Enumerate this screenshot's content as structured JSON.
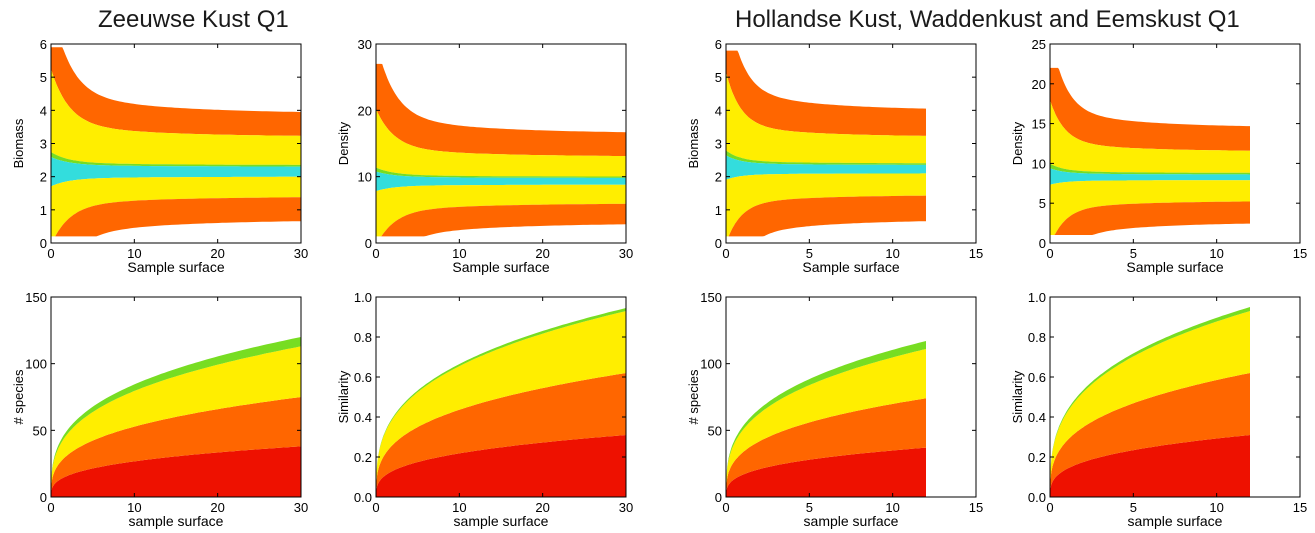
{
  "titles": {
    "left": "Zeeuwse Kust Q1",
    "right": "Hollandse Kust, Waddenkust and Eemskust  Q1"
  },
  "colors": {
    "red": "#ee1100",
    "orange": "#ff6600",
    "yellow": "#ffee00",
    "green": "#77dd22",
    "cyan": "#33dddd"
  },
  "chart_data": [
    {
      "id": "zk-biomass",
      "type": "area",
      "xlabel": "Sample surface",
      "ylabel": "Biomass",
      "xlim": [
        0,
        30
      ],
      "ylim": [
        0,
        6
      ],
      "xticks": [
        "0",
        "10",
        "20",
        "30"
      ],
      "yticks": [
        "0",
        "1",
        "2",
        "3",
        "4",
        "5",
        "6"
      ],
      "x_end": 30,
      "center": 2.15,
      "bands_at_end": [
        {
          "color": "orange",
          "low": 3.2,
          "high": 3.9
        },
        {
          "color": "yellow",
          "low": 2.35,
          "high": 3.2
        },
        {
          "color": "green",
          "low": 2.3,
          "high": 2.35
        },
        {
          "color": "cyan",
          "low": 2.0,
          "high": 2.3
        },
        {
          "color": "yellow",
          "low": 1.4,
          "high": 2.0
        },
        {
          "color": "orange",
          "low": 0.7,
          "high": 1.4
        }
      ],
      "peak": 5.9,
      "floor": 0.2
    },
    {
      "id": "zk-density",
      "type": "area",
      "xlabel": "Sample surface",
      "ylabel": "Density",
      "xlim": [
        0,
        30
      ],
      "ylim": [
        0,
        30
      ],
      "xticks": [
        "0",
        "10",
        "20",
        "30"
      ],
      "yticks": [
        "0",
        "10",
        "20",
        "30"
      ],
      "x_end": 30,
      "center": 9.3,
      "bands_at_end": [
        {
          "color": "orange",
          "low": 13,
          "high": 16.5
        },
        {
          "color": "yellow",
          "low": 10,
          "high": 13
        },
        {
          "color": "green",
          "low": 9.8,
          "high": 10
        },
        {
          "color": "cyan",
          "low": 8.8,
          "high": 9.8
        },
        {
          "color": "yellow",
          "low": 6,
          "high": 8.8
        },
        {
          "color": "orange",
          "low": 3,
          "high": 6
        }
      ],
      "peak": 27,
      "floor": 1
    },
    {
      "id": "hk-biomass",
      "type": "area",
      "xlabel": "Sample surface",
      "ylabel": "Biomass",
      "xlim": [
        0,
        15
      ],
      "ylim": [
        0,
        6
      ],
      "xticks": [
        "0",
        "5",
        "10",
        "15"
      ],
      "yticks": [
        "0",
        "1",
        "2",
        "3",
        "4",
        "5",
        "6"
      ],
      "x_end": 12,
      "center": 2.2,
      "bands_at_end": [
        {
          "color": "orange",
          "low": 3.2,
          "high": 4.0
        },
        {
          "color": "yellow",
          "low": 2.4,
          "high": 3.2
        },
        {
          "color": "green",
          "low": 2.35,
          "high": 2.4
        },
        {
          "color": "cyan",
          "low": 2.1,
          "high": 2.35
        },
        {
          "color": "yellow",
          "low": 1.45,
          "high": 2.1
        },
        {
          "color": "orange",
          "low": 0.7,
          "high": 1.45
        }
      ],
      "peak": 5.8,
      "floor": 0.2
    },
    {
      "id": "hk-density",
      "type": "area",
      "xlabel": "Sample surface",
      "ylabel": "Density",
      "xlim": [
        0,
        15
      ],
      "ylim": [
        0,
        25
      ],
      "xticks": [
        "0",
        "5",
        "10",
        "15"
      ],
      "yticks": [
        "0",
        "5",
        "10",
        "15",
        "20",
        "25"
      ],
      "x_end": 12,
      "center": 8.2,
      "bands_at_end": [
        {
          "color": "orange",
          "low": 11.5,
          "high": 14.5
        },
        {
          "color": "yellow",
          "low": 8.8,
          "high": 11.5
        },
        {
          "color": "green",
          "low": 8.6,
          "high": 8.8
        },
        {
          "color": "cyan",
          "low": 7.9,
          "high": 8.6
        },
        {
          "color": "yellow",
          "low": 5.3,
          "high": 7.9
        },
        {
          "color": "orange",
          "low": 2.6,
          "high": 5.3
        }
      ],
      "peak": 22,
      "floor": 1
    },
    {
      "id": "zk-species",
      "type": "area",
      "xlabel": "sample surface",
      "ylabel": "# species",
      "xlim": [
        0,
        30
      ],
      "ylim": [
        0,
        150
      ],
      "xticks": [
        "0",
        "10",
        "20",
        "30"
      ],
      "yticks": [
        "0",
        "50",
        "100",
        "150"
      ],
      "x_end": 30,
      "stack_at_end": [
        {
          "color": "red",
          "value": 38
        },
        {
          "color": "orange",
          "value": 75
        },
        {
          "color": "yellow",
          "value": 113
        },
        {
          "color": "green",
          "value": 120
        }
      ]
    },
    {
      "id": "zk-similarity",
      "type": "area",
      "xlabel": "sample surface",
      "ylabel": "Similarity",
      "xlim": [
        0,
        30
      ],
      "ylim": [
        0,
        1.0
      ],
      "xticks": [
        "0",
        "10",
        "20",
        "30"
      ],
      "yticks": [
        "0.0",
        "0.2",
        "0.4",
        "0.6",
        "0.8",
        "1.0"
      ],
      "x_end": 30,
      "stack_at_end": [
        {
          "color": "red",
          "value": 0.31
        },
        {
          "color": "orange",
          "value": 0.62
        },
        {
          "color": "yellow",
          "value": 0.93
        },
        {
          "color": "green",
          "value": 0.945
        }
      ]
    },
    {
      "id": "hk-species",
      "type": "area",
      "xlabel": "sample surface",
      "ylabel": "# species",
      "xlim": [
        0,
        15
      ],
      "ylim": [
        0,
        150
      ],
      "xticks": [
        "0",
        "5",
        "10",
        "15"
      ],
      "yticks": [
        "0",
        "50",
        "100",
        "150"
      ],
      "x_end": 12,
      "stack_at_end": [
        {
          "color": "red",
          "value": 37
        },
        {
          "color": "orange",
          "value": 74
        },
        {
          "color": "yellow",
          "value": 111
        },
        {
          "color": "green",
          "value": 117
        }
      ]
    },
    {
      "id": "hk-similarity",
      "type": "area",
      "xlabel": "sample surface",
      "ylabel": "Similarity",
      "xlim": [
        0,
        15
      ],
      "ylim": [
        0,
        1.0
      ],
      "xticks": [
        "0",
        "5",
        "10",
        "15"
      ],
      "yticks": [
        "0.0",
        "0.2",
        "0.4",
        "0.6",
        "0.8",
        "1.0"
      ],
      "x_end": 12,
      "stack_at_end": [
        {
          "color": "red",
          "value": 0.31
        },
        {
          "color": "orange",
          "value": 0.62
        },
        {
          "color": "yellow",
          "value": 0.93
        },
        {
          "color": "green",
          "value": 0.95
        }
      ]
    }
  ]
}
